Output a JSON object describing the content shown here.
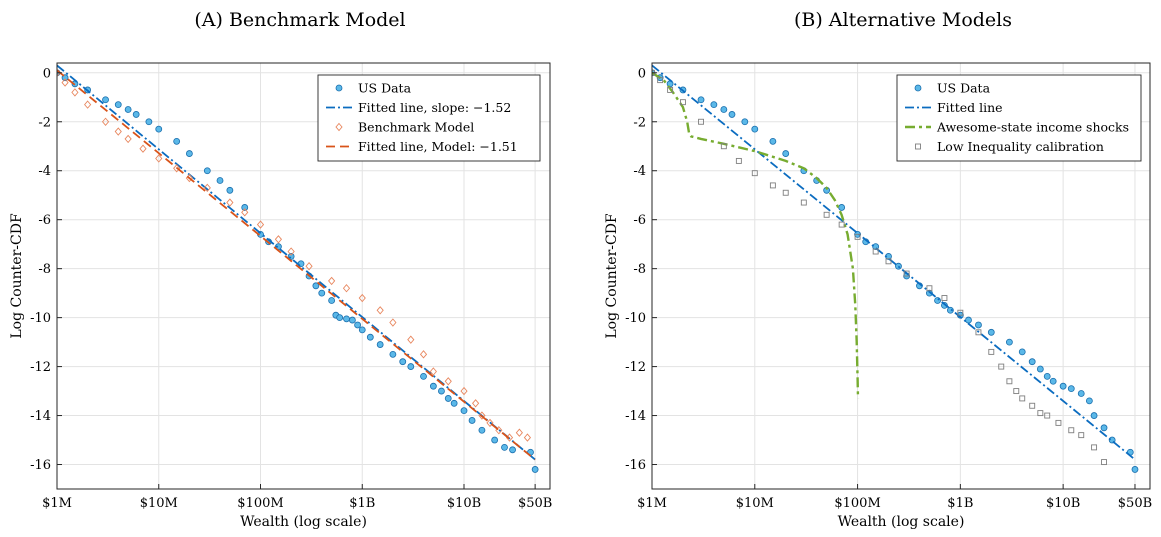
{
  "chart_data": [
    {
      "panel_label": "(A)",
      "title": "Benchmark Model",
      "type": "scatter",
      "x_scale": "log",
      "xlabel": "Wealth (log scale)",
      "ylabel": "Log Counter-CDF",
      "xlim": [
        1000000,
        70000000000
      ],
      "ylim": [
        -17,
        0.4
      ],
      "x_ticks": [
        {
          "value": 1000000,
          "label": "$1M"
        },
        {
          "value": 10000000,
          "label": "$10M"
        },
        {
          "value": 100000000,
          "label": "$100M"
        },
        {
          "value": 1000000000,
          "label": "$1B"
        },
        {
          "value": 10000000000,
          "label": "$10B"
        },
        {
          "value": 50000000000,
          "label": "$50B"
        }
      ],
      "y_ticks": [
        {
          "value": 0,
          "label": "0"
        },
        {
          "value": -2,
          "label": "-2"
        },
        {
          "value": -4,
          "label": "-4"
        },
        {
          "value": -6,
          "label": "-6"
        },
        {
          "value": -8,
          "label": "-8"
        },
        {
          "value": -10,
          "label": "-10"
        },
        {
          "value": -12,
          "label": "-12"
        },
        {
          "value": -14,
          "label": "-14"
        },
        {
          "value": -16,
          "label": "-16"
        }
      ],
      "grid": true,
      "legend_position": "top-right",
      "series": [
        {
          "name": "US Data",
          "style": "markers-circle",
          "color": "#1f9bd8",
          "points": [
            [
              1000000,
              0
            ],
            [
              1200000,
              -0.2
            ],
            [
              1500000,
              -0.45
            ],
            [
              2000000,
              -0.7
            ],
            [
              3000000,
              -1.1
            ],
            [
              4000000,
              -1.3
            ],
            [
              5000000,
              -1.5
            ],
            [
              6000000,
              -1.7
            ],
            [
              8000000,
              -2.0
            ],
            [
              10000000,
              -2.3
            ],
            [
              15000000,
              -2.8
            ],
            [
              20000000,
              -3.3
            ],
            [
              30000000,
              -4.0
            ],
            [
              40000000,
              -4.4
            ],
            [
              50000000,
              -4.8
            ],
            [
              70000000,
              -5.5
            ],
            [
              100000000,
              -6.6
            ],
            [
              120000000,
              -6.9
            ],
            [
              150000000,
              -7.1
            ],
            [
              200000000,
              -7.5
            ],
            [
              250000000,
              -7.8
            ],
            [
              300000000,
              -8.3
            ],
            [
              350000000,
              -8.7
            ],
            [
              400000000,
              -9.0
            ],
            [
              500000000,
              -9.3
            ],
            [
              550000000,
              -9.9
            ],
            [
              600000000,
              -10.0
            ],
            [
              700000000,
              -10.05
            ],
            [
              800000000,
              -10.1
            ],
            [
              900000000,
              -10.3
            ],
            [
              1000000000,
              -10.5
            ],
            [
              1200000000,
              -10.8
            ],
            [
              1500000000,
              -11.1
            ],
            [
              2000000000,
              -11.5
            ],
            [
              2500000000,
              -11.8
            ],
            [
              3000000000,
              -12.0
            ],
            [
              4000000000,
              -12.4
            ],
            [
              5000000000,
              -12.8
            ],
            [
              6000000000,
              -13.0
            ],
            [
              7000000000,
              -13.3
            ],
            [
              8000000000,
              -13.5
            ],
            [
              10000000000,
              -13.8
            ],
            [
              12000000000,
              -14.2
            ],
            [
              15000000000,
              -14.6
            ],
            [
              20000000000,
              -15.0
            ],
            [
              25000000000,
              -15.3
            ],
            [
              30000000000,
              -15.4
            ],
            [
              45000000000,
              -15.5
            ],
            [
              50000000000,
              -16.2
            ]
          ]
        },
        {
          "name": "Fitted line, slope: −1.52",
          "style": "dash-dot",
          "color": "#0b6cc0",
          "points": [
            [
              1000000,
              0.3
            ],
            [
              50000000000,
              -15.8
            ]
          ]
        },
        {
          "name": "Benchmark Model",
          "style": "markers-diamond",
          "color": "#e8875f",
          "points": [
            [
              1000000,
              0
            ],
            [
              1200000,
              -0.4
            ],
            [
              1500000,
              -0.8
            ],
            [
              2000000,
              -1.3
            ],
            [
              3000000,
              -2.0
            ],
            [
              4000000,
              -2.4
            ],
            [
              5000000,
              -2.7
            ],
            [
              7000000,
              -3.1
            ],
            [
              10000000,
              -3.5
            ],
            [
              15000000,
              -3.9
            ],
            [
              20000000,
              -4.3
            ],
            [
              30000000,
              -4.7
            ],
            [
              50000000,
              -5.3
            ],
            [
              70000000,
              -5.7
            ],
            [
              100000000,
              -6.2
            ],
            [
              150000000,
              -6.8
            ],
            [
              200000000,
              -7.3
            ],
            [
              300000000,
              -7.9
            ],
            [
              500000000,
              -8.5
            ],
            [
              700000000,
              -8.8
            ],
            [
              1000000000,
              -9.2
            ],
            [
              1500000000,
              -9.7
            ],
            [
              2000000000,
              -10.2
            ],
            [
              3000000000,
              -10.9
            ],
            [
              4000000000,
              -11.5
            ],
            [
              5000000000,
              -12.2
            ],
            [
              7000000000,
              -12.6
            ],
            [
              10000000000,
              -13.0
            ],
            [
              13000000000,
              -13.5
            ],
            [
              15000000000,
              -14.0
            ],
            [
              18000000000,
              -14.3
            ],
            [
              22000000000,
              -14.6
            ],
            [
              28000000000,
              -14.9
            ],
            [
              35000000000,
              -14.7
            ],
            [
              42000000000,
              -14.9
            ]
          ]
        },
        {
          "name": "Fitted line, Model: −1.51",
          "style": "dashed",
          "color": "#d95319",
          "points": [
            [
              1000000,
              0.1
            ],
            [
              50000000000,
              -15.8
            ]
          ]
        }
      ]
    },
    {
      "panel_label": "(B)",
      "title": "Alternative Models",
      "type": "scatter",
      "x_scale": "log",
      "xlabel": "Wealth (log scale)",
      "ylabel": "Log Counter-CDF",
      "xlim": [
        1000000,
        70000000000
      ],
      "ylim": [
        -17,
        0.4
      ],
      "x_ticks": [
        {
          "value": 1000000,
          "label": "$1M"
        },
        {
          "value": 10000000,
          "label": "$10M"
        },
        {
          "value": 100000000,
          "label": "$100M"
        },
        {
          "value": 1000000000,
          "label": "$1B"
        },
        {
          "value": 10000000000,
          "label": "$10B"
        },
        {
          "value": 50000000000,
          "label": "$50B"
        }
      ],
      "y_ticks": [
        {
          "value": 0,
          "label": "0"
        },
        {
          "value": -2,
          "label": "-2"
        },
        {
          "value": -4,
          "label": "-4"
        },
        {
          "value": -6,
          "label": "-6"
        },
        {
          "value": -8,
          "label": "-8"
        },
        {
          "value": -10,
          "label": "-10"
        },
        {
          "value": -12,
          "label": "-12"
        },
        {
          "value": -14,
          "label": "-14"
        },
        {
          "value": -16,
          "label": "-16"
        }
      ],
      "grid": true,
      "legend_position": "top-right",
      "series": [
        {
          "name": "US Data",
          "style": "markers-circle",
          "color": "#1f9bd8",
          "points": [
            [
              1000000,
              0
            ],
            [
              1200000,
              -0.2
            ],
            [
              1500000,
              -0.45
            ],
            [
              2000000,
              -0.7
            ],
            [
              3000000,
              -1.1
            ],
            [
              4000000,
              -1.3
            ],
            [
              5000000,
              -1.5
            ],
            [
              6000000,
              -1.7
            ],
            [
              8000000,
              -2.0
            ],
            [
              10000000,
              -2.3
            ],
            [
              15000000,
              -2.8
            ],
            [
              20000000,
              -3.3
            ],
            [
              30000000,
              -4.0
            ],
            [
              40000000,
              -4.4
            ],
            [
              50000000,
              -4.8
            ],
            [
              70000000,
              -5.5
            ],
            [
              100000000,
              -6.6
            ],
            [
              120000000,
              -6.9
            ],
            [
              150000000,
              -7.1
            ],
            [
              200000000,
              -7.5
            ],
            [
              250000000,
              -7.9
            ],
            [
              300000000,
              -8.3
            ],
            [
              400000000,
              -8.7
            ],
            [
              500000000,
              -9.0
            ],
            [
              600000000,
              -9.3
            ],
            [
              700000000,
              -9.5
            ],
            [
              800000000,
              -9.7
            ],
            [
              1000000000,
              -9.9
            ],
            [
              1200000000,
              -10.1
            ],
            [
              1500000000,
              -10.3
            ],
            [
              2000000000,
              -10.6
            ],
            [
              3000000000,
              -11.0
            ],
            [
              4000000000,
              -11.4
            ],
            [
              5000000000,
              -11.8
            ],
            [
              6000000000,
              -12.1
            ],
            [
              7000000000,
              -12.4
            ],
            [
              8000000000,
              -12.6
            ],
            [
              10000000000,
              -12.8
            ],
            [
              12000000000,
              -12.9
            ],
            [
              15000000000,
              -13.1
            ],
            [
              18000000000,
              -13.4
            ],
            [
              20000000000,
              -14.0
            ],
            [
              25000000000,
              -14.5
            ],
            [
              30000000000,
              -15.0
            ],
            [
              45000000000,
              -15.5
            ],
            [
              50000000000,
              -16.2
            ]
          ]
        },
        {
          "name": "Fitted line",
          "style": "dash-dot",
          "color": "#0b6cc0",
          "points": [
            [
              1000000,
              0.3
            ],
            [
              50000000000,
              -15.8
            ]
          ]
        },
        {
          "name": "Awesome-state income shocks",
          "style": "dash-dot-thick",
          "color": "#77ac30",
          "points": [
            [
              1000000,
              0
            ],
            [
              1300000,
              -0.3
            ],
            [
              1600000,
              -0.8
            ],
            [
              2000000,
              -1.4
            ],
            [
              2200000,
              -2.0
            ],
            [
              2300000,
              -2.5
            ],
            [
              2400000,
              -2.6
            ],
            [
              3000000,
              -2.7
            ],
            [
              5000000,
              -2.9
            ],
            [
              10000000,
              -3.2
            ],
            [
              20000000,
              -3.6
            ],
            [
              30000000,
              -3.9
            ],
            [
              40000000,
              -4.3
            ],
            [
              50000000,
              -4.7
            ],
            [
              60000000,
              -5.2
            ],
            [
              70000000,
              -5.8
            ],
            [
              80000000,
              -6.6
            ],
            [
              90000000,
              -8.0
            ],
            [
              95000000,
              -9.5
            ],
            [
              98000000,
              -11.0
            ],
            [
              100000000,
              -12.5
            ],
            [
              101000000,
              -13.3
            ]
          ]
        },
        {
          "name": "Low Inequality calibration",
          "style": "markers-square",
          "color": "#7f7f7f",
          "points": [
            [
              1000000,
              0
            ],
            [
              1200000,
              -0.3
            ],
            [
              1500000,
              -0.7
            ],
            [
              2000000,
              -1.2
            ],
            [
              3000000,
              -2.0
            ],
            [
              5000000,
              -3.0
            ],
            [
              7000000,
              -3.6
            ],
            [
              10000000,
              -4.1
            ],
            [
              15000000,
              -4.6
            ],
            [
              20000000,
              -4.9
            ],
            [
              30000000,
              -5.3
            ],
            [
              50000000,
              -5.8
            ],
            [
              70000000,
              -6.2
            ],
            [
              100000000,
              -6.7
            ],
            [
              150000000,
              -7.3
            ],
            [
              200000000,
              -7.7
            ],
            [
              300000000,
              -8.2
            ],
            [
              500000000,
              -8.8
            ],
            [
              700000000,
              -9.2
            ],
            [
              1000000000,
              -9.8
            ],
            [
              1500000000,
              -10.6
            ],
            [
              2000000000,
              -11.4
            ],
            [
              2500000000,
              -12.0
            ],
            [
              3000000000,
              -12.6
            ],
            [
              3500000000,
              -13.0
            ],
            [
              4000000000,
              -13.3
            ],
            [
              5000000000,
              -13.6
            ],
            [
              6000000000,
              -13.9
            ],
            [
              7000000000,
              -14.0
            ],
            [
              9000000000,
              -14.3
            ],
            [
              12000000000,
              -14.6
            ],
            [
              15000000000,
              -14.8
            ],
            [
              20000000000,
              -15.3
            ],
            [
              25000000000,
              -15.9
            ]
          ]
        }
      ]
    }
  ]
}
